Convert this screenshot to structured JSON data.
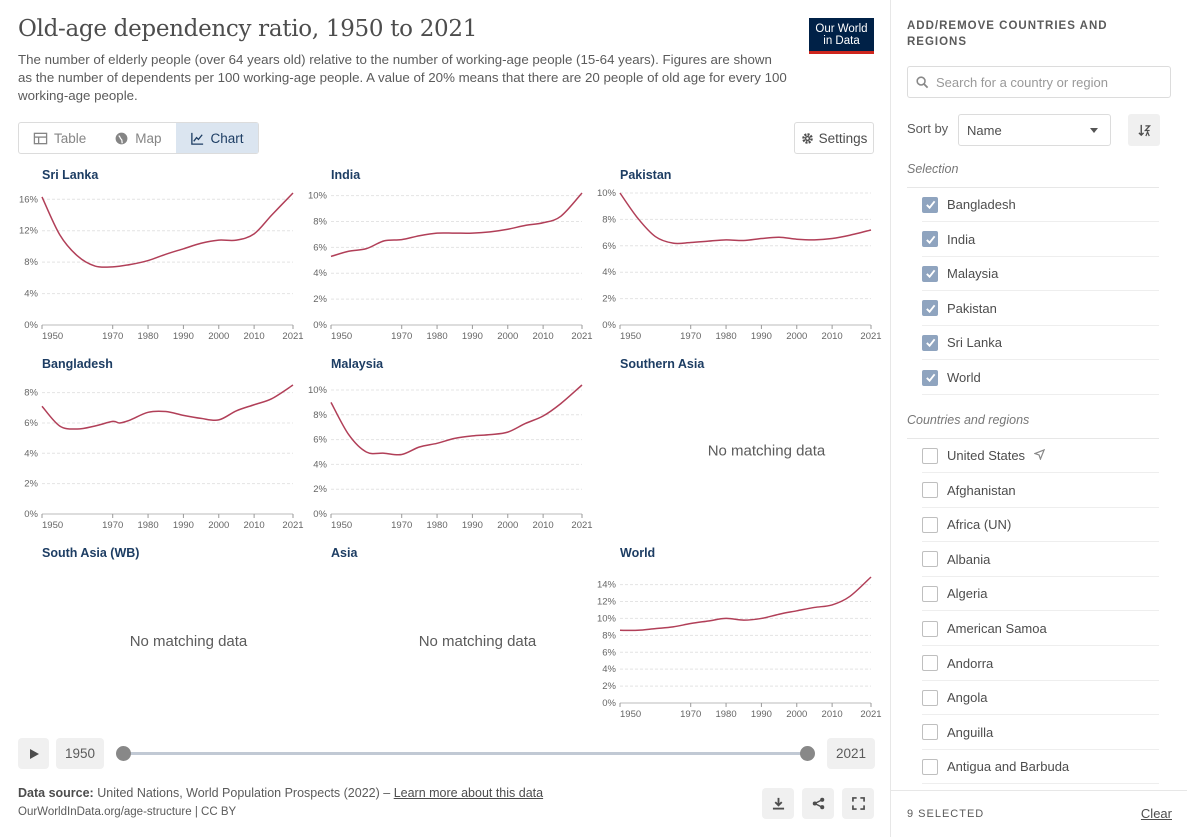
{
  "header": {
    "title": "Old-age dependency ratio, 1950 to 2021",
    "subtitle": "The number of elderly people (over 64 years old) relative to the number of working-age people (15-64 years). Figures are shown as the number of dependents per 100 working-age people. A value of 20% means that there are 20 people of old age for every 100 working-age people.",
    "logo_line1": "Our World",
    "logo_line2": "in Data"
  },
  "tabs": [
    {
      "label": "Table",
      "icon": "table-icon"
    },
    {
      "label": "Map",
      "icon": "globe-icon"
    },
    {
      "label": "Chart",
      "icon": "line-chart-icon",
      "active": true
    }
  ],
  "settings_label": "Settings",
  "no_data_text": "No matching data",
  "colors": {
    "line": "#b13f58",
    "accent": "#1d3d63"
  },
  "chart_data": [
    {
      "type": "line",
      "title": "Sri Lanka",
      "x": [
        1950,
        1955,
        1960,
        1965,
        1970,
        1975,
        1980,
        1985,
        1990,
        1995,
        2000,
        2005,
        2010,
        2015,
        2021
      ],
      "values": [
        16.3,
        11.5,
        8.8,
        7.5,
        7.4,
        7.7,
        8.2,
        9.0,
        9.7,
        10.4,
        10.8,
        10.8,
        11.6,
        14.0,
        16.8
      ],
      "y_ticks": [
        "0%",
        "4%",
        "8%",
        "12%",
        "16%"
      ],
      "ylim": [
        0,
        16.8
      ],
      "x_ticks": [
        "1950",
        "1970",
        "1980",
        "1990",
        "2000",
        "2010",
        "2021"
      ]
    },
    {
      "type": "line",
      "title": "India",
      "x": [
        1950,
        1955,
        1960,
        1965,
        1970,
        1975,
        1980,
        1985,
        1990,
        1995,
        2000,
        2005,
        2010,
        2015,
        2021
      ],
      "values": [
        5.3,
        5.7,
        5.9,
        6.5,
        6.6,
        6.9,
        7.1,
        7.1,
        7.1,
        7.2,
        7.4,
        7.7,
        7.9,
        8.4,
        10.2
      ],
      "y_ticks": [
        "0%",
        "2%",
        "4%",
        "6%",
        "8%",
        "10%"
      ],
      "ylim": [
        0,
        10.2
      ],
      "x_ticks": [
        "1950",
        "1970",
        "1980",
        "1990",
        "2000",
        "2010",
        "2021"
      ]
    },
    {
      "type": "line",
      "title": "Pakistan",
      "x": [
        1950,
        1955,
        1960,
        1965,
        1970,
        1975,
        1980,
        1985,
        1990,
        1995,
        2000,
        2005,
        2010,
        2015,
        2021
      ],
      "values": [
        10.0,
        8.1,
        6.7,
        6.2,
        6.25,
        6.35,
        6.45,
        6.4,
        6.55,
        6.65,
        6.5,
        6.45,
        6.55,
        6.8,
        7.2
      ],
      "y_ticks": [
        "0%",
        "2%",
        "4%",
        "6%",
        "8%",
        "10%"
      ],
      "ylim": [
        0,
        10
      ],
      "x_ticks": [
        "1950",
        "1970",
        "1980",
        "1990",
        "2000",
        "2010",
        "2021"
      ]
    },
    {
      "type": "line",
      "title": "Bangladesh",
      "x": [
        1950,
        1955,
        1960,
        1965,
        1970,
        1972,
        1975,
        1980,
        1985,
        1990,
        1995,
        2000,
        2005,
        2010,
        2015,
        2021
      ],
      "values": [
        7.1,
        5.8,
        5.6,
        5.8,
        6.1,
        6.0,
        6.2,
        6.7,
        6.75,
        6.5,
        6.3,
        6.2,
        6.8,
        7.2,
        7.6,
        8.5
      ],
      "y_ticks": [
        "0%",
        "2%",
        "4%",
        "6%",
        "8%"
      ],
      "ylim": [
        0,
        8.5
      ],
      "x_ticks": [
        "1950",
        "1970",
        "1980",
        "1990",
        "2000",
        "2010",
        "2021"
      ]
    },
    {
      "type": "line",
      "title": "Malaysia",
      "x": [
        1950,
        1955,
        1960,
        1965,
        1970,
        1975,
        1980,
        1985,
        1990,
        1995,
        2000,
        2005,
        2010,
        2015,
        2021
      ],
      "values": [
        9.0,
        6.4,
        5.0,
        4.9,
        4.8,
        5.4,
        5.7,
        6.1,
        6.3,
        6.4,
        6.6,
        7.3,
        7.9,
        8.9,
        10.4
      ],
      "y_ticks": [
        "0%",
        "2%",
        "4%",
        "6%",
        "8%",
        "10%"
      ],
      "ylim": [
        0,
        10.4
      ],
      "x_ticks": [
        "1950",
        "1970",
        "1980",
        "1990",
        "2000",
        "2010",
        "2021"
      ]
    },
    {
      "type": "line",
      "title": "Southern Asia",
      "no_data": true
    },
    {
      "type": "line",
      "title": "South Asia (WB)",
      "no_data": true
    },
    {
      "type": "line",
      "title": "Asia",
      "no_data": true
    },
    {
      "type": "line",
      "title": "World",
      "x": [
        1950,
        1955,
        1960,
        1965,
        1970,
        1975,
        1980,
        1985,
        1990,
        1995,
        2000,
        2005,
        2010,
        2015,
        2021
      ],
      "values": [
        8.6,
        8.6,
        8.8,
        9.0,
        9.4,
        9.7,
        10.0,
        9.8,
        10.0,
        10.5,
        10.9,
        11.3,
        11.6,
        12.6,
        14.9
      ],
      "y_ticks": [
        "0%",
        "2%",
        "4%",
        "6%",
        "8%",
        "10%",
        "12%",
        "14%"
      ],
      "ylim": [
        0,
        14.9
      ],
      "x_ticks": [
        "1950",
        "1970",
        "1980",
        "1990",
        "2000",
        "2010",
        "2021"
      ]
    }
  ],
  "timeline": {
    "start_label": "1950",
    "end_label": "2021"
  },
  "footer": {
    "source_label": "Data source:",
    "source_text": "United Nations, World Population Prospects (2022) –",
    "learn_more": "Learn more about this data",
    "url": "OurWorldInData.org/age-structure | CC BY"
  },
  "sidebar": {
    "title": "ADD/REMOVE COUNTRIES AND REGIONS",
    "search_placeholder": "Search for a country or region",
    "sort_label": "Sort by",
    "sort_value": "Name",
    "selection_label": "Selection",
    "selection": [
      "Bangladesh",
      "India",
      "Malaysia",
      "Pakistan",
      "Sri Lanka",
      "World"
    ],
    "countries_label": "Countries and regions",
    "countries": [
      "United States",
      "Afghanistan",
      "Africa (UN)",
      "Albania",
      "Algeria",
      "American Samoa",
      "Andorra",
      "Angola",
      "Anguilla",
      "Antigua and Barbuda"
    ],
    "selected_count": "9 SELECTED",
    "clear_label": "Clear"
  }
}
